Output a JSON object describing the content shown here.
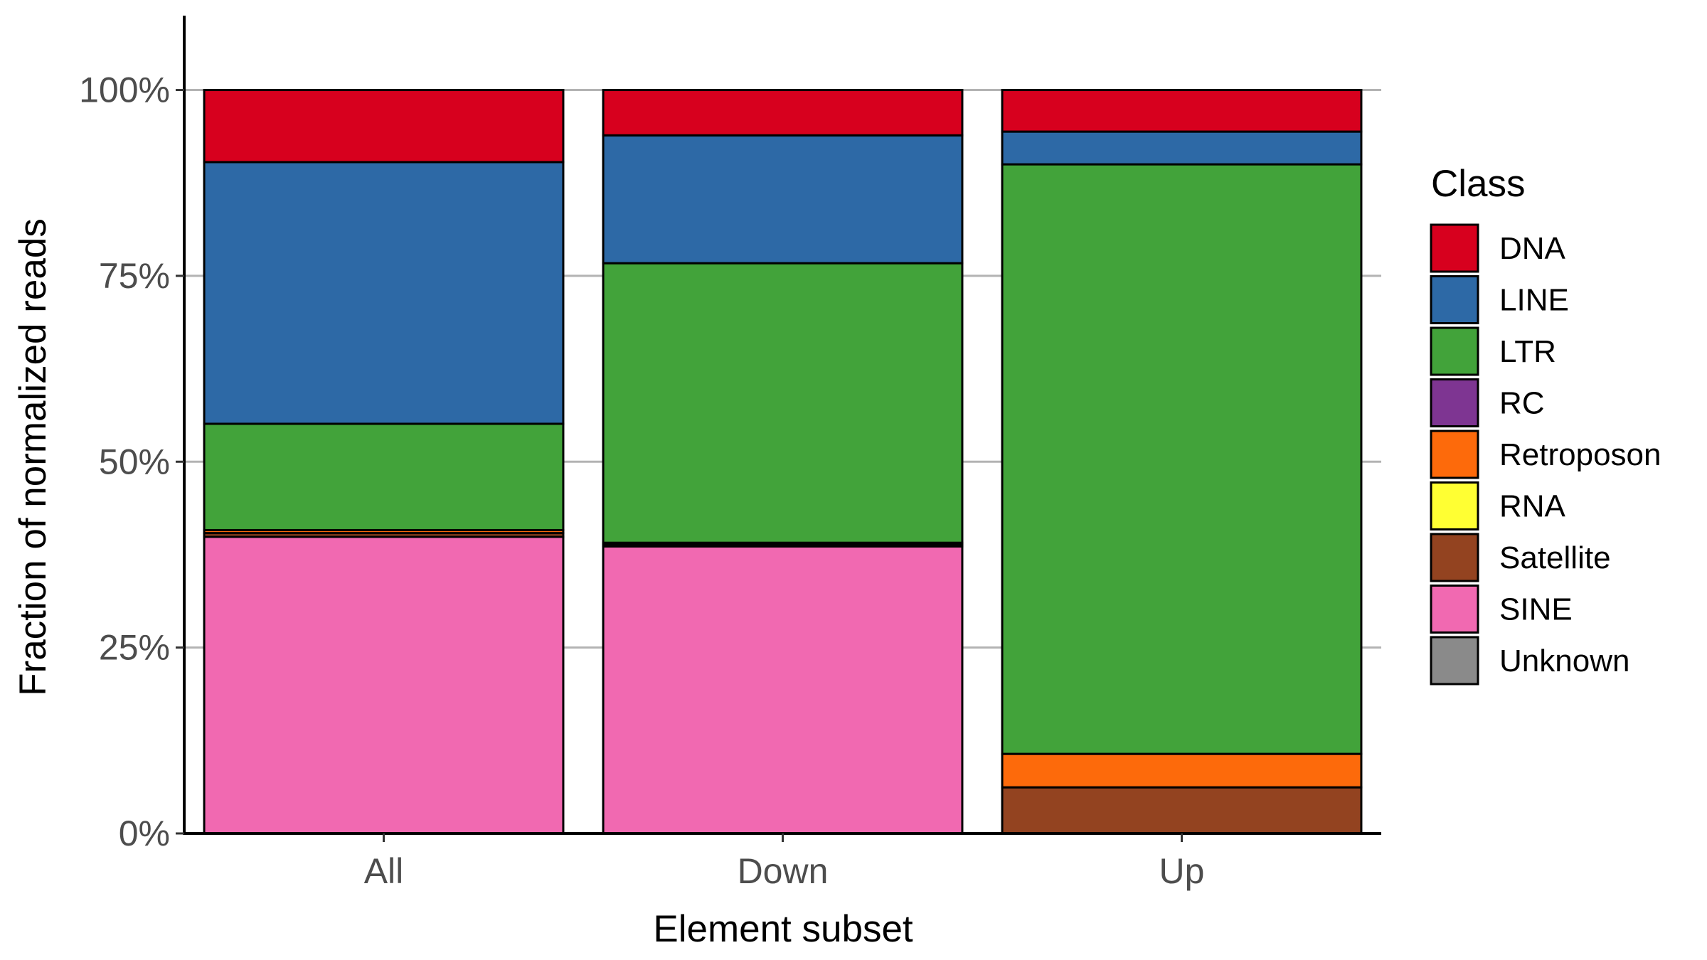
{
  "chart_data": {
    "type": "bar",
    "stacked": true,
    "xlabel": "Element subset",
    "ylabel": "Fraction of normalized reads",
    "categories": [
      "All",
      "Down",
      "Up"
    ],
    "ylim": [
      0,
      1.1
    ],
    "yticks": [
      0,
      0.25,
      0.5,
      0.75,
      1.0
    ],
    "ytick_labels": [
      "0%",
      "25%",
      "50%",
      "75%",
      "100%"
    ],
    "grid": "horizontal major",
    "legend": {
      "title": "Class",
      "position": "right"
    },
    "series": [
      {
        "name": "DNA",
        "color": "#D7001E",
        "values": [
          0.097,
          0.061,
          0.056
        ]
      },
      {
        "name": "LINE",
        "color": "#2D69A6",
        "values": [
          0.352,
          0.172,
          0.044
        ]
      },
      {
        "name": "LTR",
        "color": "#42A33A",
        "values": [
          0.143,
          0.376,
          0.793
        ]
      },
      {
        "name": "RC",
        "color": "#7E3592",
        "values": [
          0.0,
          0.0,
          0.0
        ]
      },
      {
        "name": "Retroposon",
        "color": "#FD6A0B",
        "values": [
          0.004,
          0.002,
          0.045
        ]
      },
      {
        "name": "RNA",
        "color": "#FFFF33",
        "values": [
          0.0,
          0.0,
          0.0
        ]
      },
      {
        "name": "Satellite",
        "color": "#934320",
        "values": [
          0.005,
          0.003,
          0.062
        ]
      },
      {
        "name": "SINE",
        "color": "#F169B1",
        "values": [
          0.399,
          0.386,
          0.0
        ]
      },
      {
        "name": "Unknown",
        "color": "#8A8A8A",
        "values": [
          0.0,
          0.0,
          0.0
        ]
      }
    ]
  }
}
